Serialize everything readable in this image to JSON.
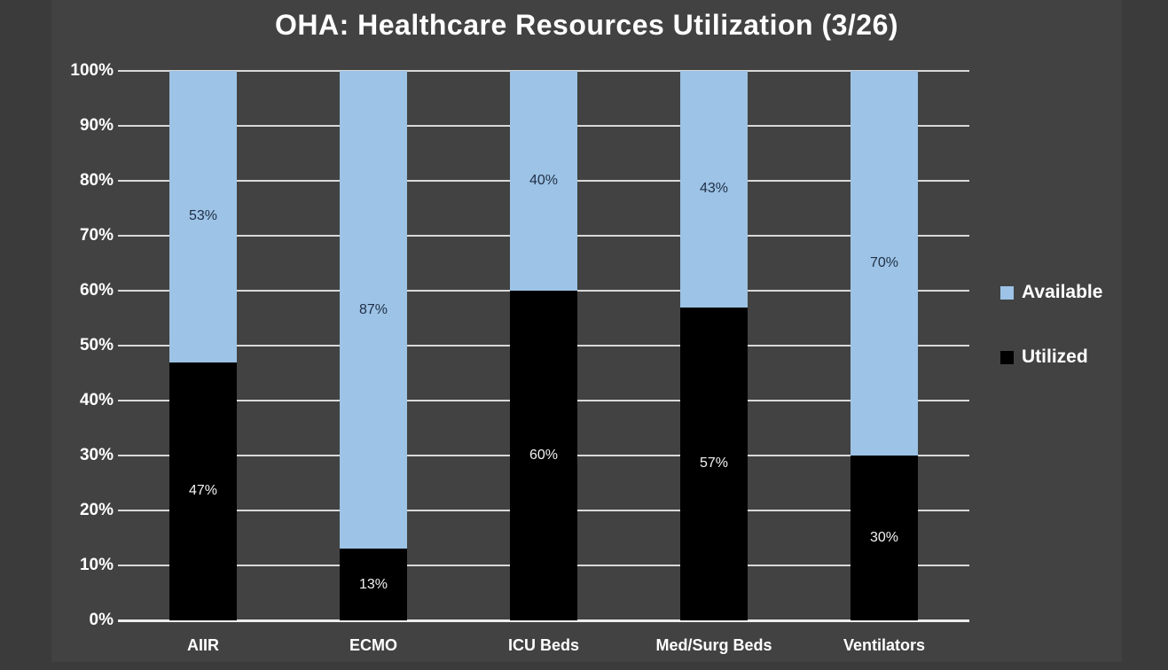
{
  "chart_data": {
    "type": "bar",
    "stacked": true,
    "orientation": "vertical",
    "title": "OHA: Healthcare Resources Utilization (3/26)",
    "categories": [
      "AIIR",
      "ECMO",
      "ICU Beds",
      "Med/Surg Beds",
      "Ventilators"
    ],
    "series": [
      {
        "name": "Utilized",
        "color": "#000000",
        "values": [
          47,
          13,
          60,
          57,
          30
        ]
      },
      {
        "name": "Available",
        "color": "#9dc3e6",
        "values": [
          53,
          87,
          40,
          43,
          70
        ]
      }
    ],
    "value_format": "percent",
    "data_labels": {
      "utilized": [
        "47%",
        "13%",
        "60%",
        "57%",
        "30%"
      ],
      "available": [
        "53%",
        "87%",
        "40%",
        "43%",
        "70%"
      ]
    },
    "y_ticks": [
      "100%",
      "90%",
      "80%",
      "70%",
      "60%",
      "50%",
      "40%",
      "30%",
      "20%",
      "10%",
      "0%"
    ],
    "ylim": [
      0,
      100
    ],
    "grid": true,
    "legend": {
      "position": "right",
      "items": [
        "Available",
        "Utilized"
      ]
    },
    "colors": {
      "page_background": "#3b3b3b",
      "chart_background": "#424242",
      "gridline": "#d9d9d9",
      "axis_line": "#ececec",
      "title_text": "#ffffff",
      "tick_text": "#ffffff",
      "available_fill": "#9dc3e6",
      "utilized_fill": "#000000",
      "label_on_available": "#1f2f46",
      "label_on_utilized": "#f2f2f2"
    }
  }
}
